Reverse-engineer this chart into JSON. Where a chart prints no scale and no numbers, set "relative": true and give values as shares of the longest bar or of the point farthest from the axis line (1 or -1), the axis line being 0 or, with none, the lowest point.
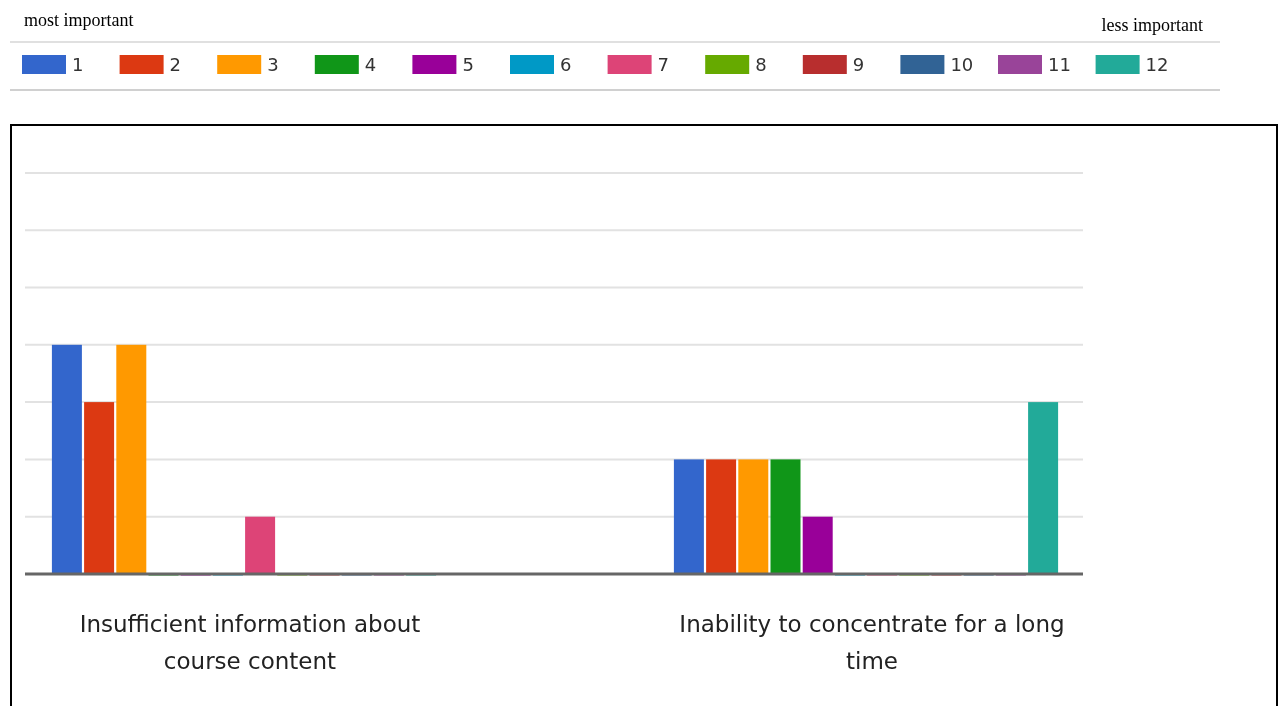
{
  "chart_data": {
    "type": "bar",
    "relative": true,
    "grid": true,
    "legend": "top",
    "annotations": [
      "most important",
      "less important"
    ],
    "categories": [
      "Insufficient information about course content",
      "Inability to concentrate for a long time"
    ],
    "series": [
      {
        "name": "1",
        "color": "#3366cc",
        "values": [
          1,
          0.5
        ]
      },
      {
        "name": "2",
        "color": "#dc3912",
        "values": [
          0.75,
          0.5
        ]
      },
      {
        "name": "3",
        "color": "#ff9900",
        "values": [
          1,
          0.5
        ]
      },
      {
        "name": "4",
        "color": "#109618",
        "values": [
          0,
          0.5
        ]
      },
      {
        "name": "5",
        "color": "#990099",
        "values": [
          0,
          0.25
        ]
      },
      {
        "name": "6",
        "color": "#0099c6",
        "values": [
          0,
          0
        ]
      },
      {
        "name": "7",
        "color": "#dd4477",
        "values": [
          0.25,
          0
        ]
      },
      {
        "name": "8",
        "color": "#66aa00",
        "values": [
          0,
          0
        ]
      },
      {
        "name": "9",
        "color": "#b82e2e",
        "values": [
          0,
          0
        ]
      },
      {
        "name": "10",
        "color": "#316395",
        "values": [
          0,
          0
        ]
      },
      {
        "name": "11",
        "color": "#994499",
        "values": [
          0,
          0
        ]
      },
      {
        "name": "12",
        "color": "#22aa99",
        "values": [
          0,
          0.75
        ]
      }
    ]
  }
}
